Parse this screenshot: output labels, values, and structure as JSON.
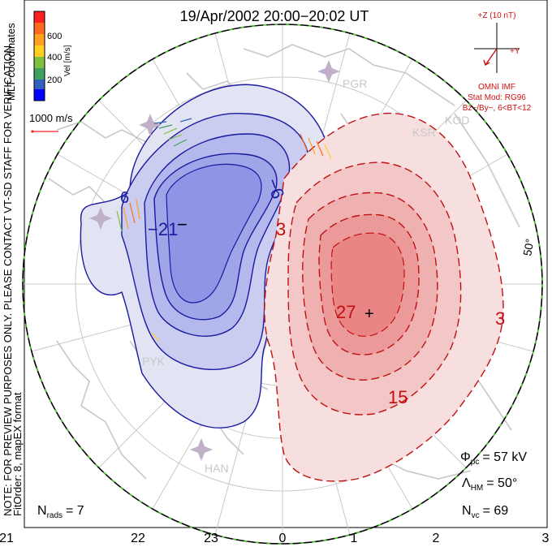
{
  "title": "19/Apr/2002 20:00−20:02 UT",
  "colorbar": {
    "ticks": [
      "600",
      "400",
      "200"
    ],
    "label": "Vel [m/s]",
    "colors": [
      "#ff2020",
      "#ff6a20",
      "#ffa020",
      "#ffd020",
      "#80c040",
      "#40a060",
      "#3060c0",
      "#0000ff"
    ]
  },
  "coordinates_label": "MLT coordinates",
  "velocity_reference": "1000 m/s",
  "watermark": "NOTE: FOR PREVIEW PURPOSES ONLY. PLEASE CONTACT VT-SD STAFF FOR VERIFICATION.",
  "fit_order": "FitOrder: 8, mapEX format",
  "imf": {
    "z_label": "+Z (10 nT)",
    "y_label": "+Y",
    "source": "OMNI IMF",
    "stat_mod": "Stat Mod: RG96",
    "condition": "Bz−/By−, 6<BT<12"
  },
  "stats": {
    "phi_pc_label": "Φ",
    "phi_pc_sub": "pc",
    "phi_pc_value": "= 57 kV",
    "lambda_hm_label": "Λ",
    "lambda_hm_sub": "HM",
    "lambda_hm_value": "= 50°",
    "n_vc_label": "N",
    "n_vc_sub": "vc",
    "n_vc_value": "= 69",
    "n_rads_label": "N",
    "n_rads_sub": "rads",
    "n_rads_value": "= 7"
  },
  "lat_label": "50°",
  "mlt_labels": [
    "21",
    "22",
    "23",
    "0",
    "1",
    "2",
    "3"
  ],
  "contour_labels": {
    "neg": [
      "−6",
      "6",
      "−21"
    ],
    "pos": [
      "3",
      "27",
      "15",
      "3"
    ]
  },
  "min_marker": "−",
  "max_marker": "+",
  "radars": [
    "PGR",
    "KOD",
    "KSR",
    "PYK",
    "HAN"
  ],
  "colors": {
    "negative_line": "#1a1aa0",
    "positive_line": "#c01010",
    "boundary": "#44cc22",
    "coast": "#c8c8c8"
  }
}
